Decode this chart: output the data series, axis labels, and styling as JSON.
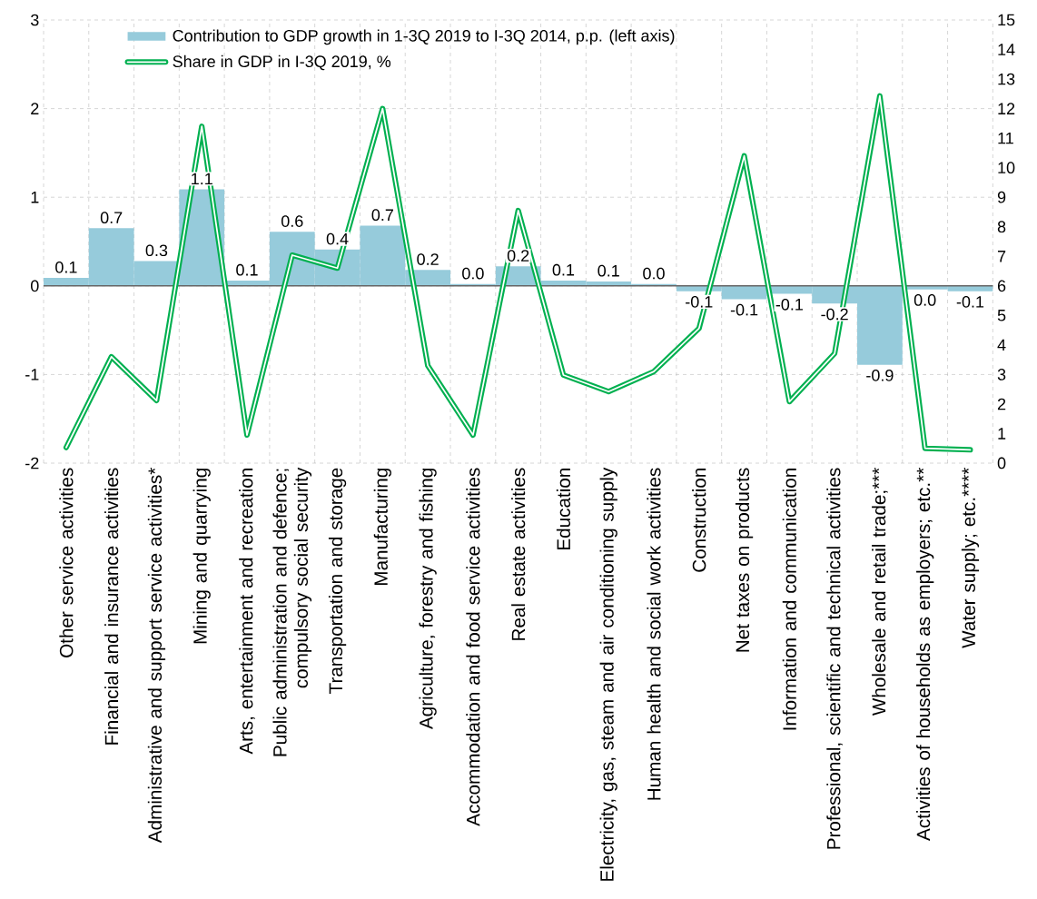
{
  "chart_data": {
    "type": "bar",
    "categories": [
      "Other service activities",
      "Financial and insurance activities",
      "Administrative and support service activities*",
      "Mining and quarrying",
      "Arts, entertainment and recreation",
      "Public administration and defence; compulsory social security",
      "Transportation and storage",
      "Manufacturing",
      "Agriculture, forestry and fishing",
      "Accommodation and food service activities",
      "Real estate activities",
      "Education",
      "Electricity, gas, steam and air conditioning supply",
      "Human health and social work activities",
      "Construction",
      "Net taxes on products",
      "Information and communication",
      "Professional, scientific and technical activities",
      "Wholesale and retail trade;***",
      "Activities of households as employers; etc.**",
      "Water supply; etc.****"
    ],
    "series": [
      {
        "name": "Contribution to GDP growth in 1-3Q 2019 to I-3Q 2014, p.p. (left axis)",
        "color": "#96cbdb",
        "values": [
          0.09,
          0.65,
          0.28,
          1.09,
          0.06,
          0.61,
          0.41,
          0.68,
          0.18,
          0.02,
          0.22,
          0.06,
          0.05,
          0.02,
          -0.06,
          -0.15,
          -0.09,
          -0.2,
          -0.89,
          -0.04,
          -0.06
        ],
        "value_labels": [
          "0.1",
          "0.7",
          "0.3",
          "1.1",
          "0.1",
          "0.6",
          "0.4",
          "0.7",
          "0.2",
          "0.0",
          "0.2",
          "0.1",
          "0.1",
          "0.0",
          "-0.1",
          "-0.1",
          "-0.1",
          "-0.2",
          "-0.9",
          "0.0",
          "-0.1"
        ]
      },
      {
        "name": "Share in GDP in I-3Q 2019, %",
        "type": "line",
        "axis": "y2",
        "color": "#00b050",
        "values": [
          0.53,
          3.6,
          2.12,
          11.4,
          0.95,
          7.04,
          6.6,
          12.0,
          3.3,
          0.95,
          8.55,
          2.98,
          2.42,
          3.1,
          4.56,
          10.4,
          2.08,
          3.71,
          12.43,
          0.5,
          0.45
        ]
      }
    ],
    "ylim": [
      -2,
      3
    ],
    "yticks": [
      -2,
      -1,
      0,
      1,
      2,
      3
    ],
    "y2lim": [
      0,
      15
    ],
    "y2ticks": [
      0,
      1,
      2,
      3,
      4,
      5,
      6,
      7,
      8,
      9,
      10,
      11,
      12,
      13,
      14,
      15
    ],
    "grid": true,
    "legend": "top left"
  }
}
